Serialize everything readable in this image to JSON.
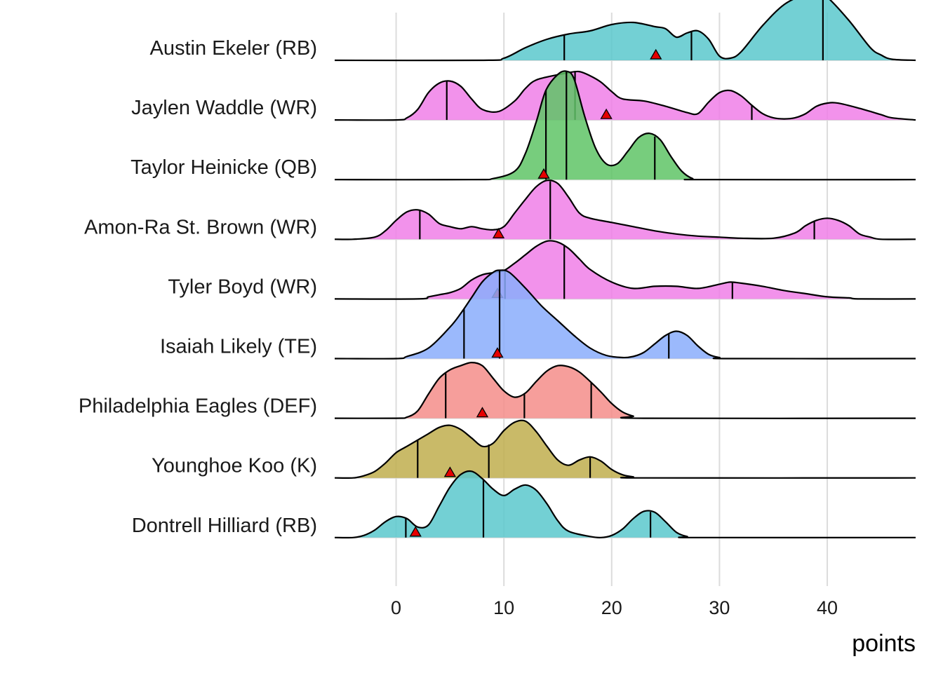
{
  "chart_data": {
    "type": "ridgeline",
    "xlabel": "points",
    "xlim": [
      -5.7,
      48.2
    ],
    "xticks": [
      0,
      10,
      20,
      30,
      40
    ],
    "grid": true,
    "legend": "none",
    "colors": {
      "RB": "#5bc8cc",
      "WR": "#f07fe8",
      "QB": "#5fc466",
      "TE": "#8aadfb",
      "DEF": "#f58d8a",
      "K": "#c0ae4e",
      "marker": "#e60000",
      "outline": "#000000",
      "grid": "#dcdcdc"
    },
    "players": [
      {
        "label": "Austin Ekeler (RB)",
        "position": "RB",
        "marker": 24.1,
        "quantile_lines": [
          15.6,
          27.4,
          39.6
        ],
        "density": [
          [
            -5.7,
            0
          ],
          [
            8,
            0
          ],
          [
            10,
            0.02
          ],
          [
            12,
            0.12
          ],
          [
            14,
            0.2
          ],
          [
            16,
            0.25
          ],
          [
            18,
            0.28
          ],
          [
            20,
            0.34
          ],
          [
            22,
            0.36
          ],
          [
            24,
            0.32
          ],
          [
            25,
            0.3
          ],
          [
            26,
            0.22
          ],
          [
            27,
            0.26
          ],
          [
            28,
            0.28
          ],
          [
            29,
            0.2
          ],
          [
            30,
            0.04
          ],
          [
            31,
            0.02
          ],
          [
            32,
            0.08
          ],
          [
            34,
            0.33
          ],
          [
            36,
            0.53
          ],
          [
            38,
            0.63
          ],
          [
            39,
            0.64
          ],
          [
            40,
            0.6
          ],
          [
            42,
            0.38
          ],
          [
            44,
            0.12
          ],
          [
            45,
            0.05
          ],
          [
            46,
            0.01
          ],
          [
            48.2,
            0
          ]
        ]
      },
      {
        "label": "Jaylen Waddle (WR)",
        "position": "WR",
        "marker": 19.5,
        "quantile_lines": [
          4.7,
          16.6,
          33.0
        ],
        "density": [
          [
            -5.7,
            0
          ],
          [
            0,
            0
          ],
          [
            1,
            0.02
          ],
          [
            2,
            0.1
          ],
          [
            3,
            0.26
          ],
          [
            4,
            0.35
          ],
          [
            5,
            0.37
          ],
          [
            6,
            0.32
          ],
          [
            7,
            0.2
          ],
          [
            8,
            0.1
          ],
          [
            9.5,
            0.08
          ],
          [
            11,
            0.18
          ],
          [
            12,
            0.3
          ],
          [
            13,
            0.38
          ],
          [
            15,
            0.43
          ],
          [
            16,
            0.45
          ],
          [
            17,
            0.46
          ],
          [
            18,
            0.42
          ],
          [
            19,
            0.36
          ],
          [
            20,
            0.27
          ],
          [
            21,
            0.2
          ],
          [
            23,
            0.18
          ],
          [
            25,
            0.13
          ],
          [
            27,
            0.07
          ],
          [
            28,
            0.06
          ],
          [
            29,
            0.17
          ],
          [
            30,
            0.26
          ],
          [
            31,
            0.28
          ],
          [
            32,
            0.23
          ],
          [
            33,
            0.14
          ],
          [
            34,
            0.06
          ],
          [
            35,
            0.02
          ],
          [
            36,
            0.01
          ],
          [
            37,
            0.02
          ],
          [
            38,
            0.06
          ],
          [
            39,
            0.13
          ],
          [
            40,
            0.16
          ],
          [
            41,
            0.16
          ],
          [
            43,
            0.11
          ],
          [
            45,
            0.05
          ],
          [
            46,
            0.02
          ],
          [
            48.2,
            0
          ]
        ]
      },
      {
        "label": "Taylor Heinicke (QB)",
        "position": "QB",
        "marker": 13.7,
        "quantile_lines": [
          13.9,
          15.8,
          24.0
        ],
        "density": [
          [
            -5.7,
            0
          ],
          [
            7,
            0
          ],
          [
            9,
            0.01
          ],
          [
            11,
            0.08
          ],
          [
            12,
            0.25
          ],
          [
            13,
            0.55
          ],
          [
            13.9,
            0.85
          ],
          [
            15,
            1.0
          ],
          [
            15.8,
            1.03
          ],
          [
            16.5,
            0.96
          ],
          [
            17.5,
            0.6
          ],
          [
            18.5,
            0.3
          ],
          [
            19.5,
            0.15
          ],
          [
            20.5,
            0.15
          ],
          [
            21.5,
            0.27
          ],
          [
            22.5,
            0.4
          ],
          [
            23.5,
            0.44
          ],
          [
            24.5,
            0.38
          ],
          [
            25.5,
            0.22
          ],
          [
            26.5,
            0.08
          ],
          [
            27.5,
            0.01
          ],
          [
            28.5,
            0
          ],
          [
            48.2,
            0
          ]
        ]
      },
      {
        "label": "Amon-Ra St. Brown (WR)",
        "position": "WR",
        "marker": 9.5,
        "quantile_lines": [
          2.2,
          14.3,
          38.8
        ],
        "density": [
          [
            -5.7,
            0
          ],
          [
            -4,
            0
          ],
          [
            -2,
            0.02
          ],
          [
            -1,
            0.08
          ],
          [
            0,
            0.18
          ],
          [
            1,
            0.26
          ],
          [
            2,
            0.28
          ],
          [
            3,
            0.24
          ],
          [
            4,
            0.15
          ],
          [
            5,
            0.12
          ],
          [
            6,
            0.1
          ],
          [
            7,
            0.12
          ],
          [
            8,
            0.1
          ],
          [
            9,
            0.09
          ],
          [
            10,
            0.12
          ],
          [
            11,
            0.25
          ],
          [
            12,
            0.38
          ],
          [
            13,
            0.5
          ],
          [
            14,
            0.56
          ],
          [
            15,
            0.53
          ],
          [
            16,
            0.4
          ],
          [
            17,
            0.25
          ],
          [
            18,
            0.2
          ],
          [
            20,
            0.16
          ],
          [
            22,
            0.12
          ],
          [
            24,
            0.08
          ],
          [
            26,
            0.05
          ],
          [
            28,
            0.03
          ],
          [
            30,
            0.02
          ],
          [
            32,
            0.01
          ],
          [
            35,
            0.01
          ],
          [
            37,
            0.06
          ],
          [
            38,
            0.13
          ],
          [
            39,
            0.18
          ],
          [
            40,
            0.2
          ],
          [
            41,
            0.18
          ],
          [
            42,
            0.13
          ],
          [
            43,
            0.05
          ],
          [
            44,
            0.02
          ],
          [
            45,
            0
          ],
          [
            48.2,
            0
          ]
        ]
      },
      {
        "label": "Tyler Boyd (WR)",
        "position": "WR",
        "marker": 9.4,
        "quantile_lines": [
          10.1,
          15.6,
          31.2
        ],
        "density": [
          [
            -5.7,
            0
          ],
          [
            2,
            0
          ],
          [
            3,
            0.02
          ],
          [
            4,
            0.04
          ],
          [
            5,
            0.06
          ],
          [
            6,
            0.1
          ],
          [
            7,
            0.18
          ],
          [
            8,
            0.23
          ],
          [
            9,
            0.25
          ],
          [
            10,
            0.27
          ],
          [
            11,
            0.34
          ],
          [
            12,
            0.42
          ],
          [
            13,
            0.5
          ],
          [
            14,
            0.55
          ],
          [
            15,
            0.54
          ],
          [
            16,
            0.48
          ],
          [
            17,
            0.38
          ],
          [
            18,
            0.28
          ],
          [
            20,
            0.16
          ],
          [
            22,
            0.1
          ],
          [
            24,
            0.12
          ],
          [
            26,
            0.12
          ],
          [
            28,
            0.1
          ],
          [
            30,
            0.14
          ],
          [
            31,
            0.16
          ],
          [
            32,
            0.15
          ],
          [
            34,
            0.12
          ],
          [
            36,
            0.08
          ],
          [
            38,
            0.05
          ],
          [
            40,
            0.02
          ],
          [
            42,
            0.01
          ],
          [
            43,
            0
          ],
          [
            48.2,
            0
          ]
        ]
      },
      {
        "label": "Isaiah Likely (TE)",
        "position": "TE",
        "marker": 9.4,
        "quantile_lines": [
          6.3,
          9.6,
          25.3
        ],
        "density": [
          [
            -5.7,
            0
          ],
          [
            0,
            0
          ],
          [
            1,
            0.02
          ],
          [
            3,
            0.1
          ],
          [
            5,
            0.3
          ],
          [
            6,
            0.43
          ],
          [
            7,
            0.58
          ],
          [
            8,
            0.73
          ],
          [
            9,
            0.82
          ],
          [
            9.6,
            0.84
          ],
          [
            10.5,
            0.82
          ],
          [
            12,
            0.67
          ],
          [
            13.5,
            0.5
          ],
          [
            15,
            0.36
          ],
          [
            16.5,
            0.22
          ],
          [
            18,
            0.1
          ],
          [
            19.5,
            0.03
          ],
          [
            21,
            0.01
          ],
          [
            22,
            0.02
          ],
          [
            23,
            0.06
          ],
          [
            24,
            0.14
          ],
          [
            25,
            0.22
          ],
          [
            26,
            0.26
          ],
          [
            27,
            0.22
          ],
          [
            28,
            0.12
          ],
          [
            29,
            0.04
          ],
          [
            30,
            0.01
          ],
          [
            31,
            0
          ],
          [
            48.2,
            0
          ]
        ]
      },
      {
        "label": "Philadelphia Eagles (DEF)",
        "position": "DEF",
        "marker": 8.0,
        "quantile_lines": [
          4.6,
          11.9,
          18.1
        ],
        "density": [
          [
            -5.7,
            0
          ],
          [
            0,
            0
          ],
          [
            1,
            0.01
          ],
          [
            2,
            0.07
          ],
          [
            3,
            0.23
          ],
          [
            4,
            0.38
          ],
          [
            5,
            0.46
          ],
          [
            6,
            0.5
          ],
          [
            7,
            0.53
          ],
          [
            8,
            0.5
          ],
          [
            9,
            0.38
          ],
          [
            10,
            0.26
          ],
          [
            11,
            0.2
          ],
          [
            12,
            0.24
          ],
          [
            13,
            0.35
          ],
          [
            14,
            0.45
          ],
          [
            15,
            0.5
          ],
          [
            16,
            0.49
          ],
          [
            17,
            0.44
          ],
          [
            18,
            0.35
          ],
          [
            19,
            0.25
          ],
          [
            20,
            0.14
          ],
          [
            21,
            0.06
          ],
          [
            22,
            0.02
          ],
          [
            23,
            0
          ],
          [
            48.2,
            0
          ]
        ]
      },
      {
        "label": "Younghoe Koo (K)",
        "position": "K",
        "marker": 5.0,
        "quantile_lines": [
          2.0,
          8.6,
          18.0
        ],
        "density": [
          [
            -5.7,
            0
          ],
          [
            -4,
            0
          ],
          [
            -3,
            0.02
          ],
          [
            -2,
            0.06
          ],
          [
            -1,
            0.14
          ],
          [
            0,
            0.24
          ],
          [
            1,
            0.3
          ],
          [
            2,
            0.36
          ],
          [
            3,
            0.42
          ],
          [
            4,
            0.48
          ],
          [
            5,
            0.5
          ],
          [
            6,
            0.46
          ],
          [
            7,
            0.38
          ],
          [
            8,
            0.3
          ],
          [
            9,
            0.33
          ],
          [
            10,
            0.45
          ],
          [
            11,
            0.53
          ],
          [
            12,
            0.54
          ],
          [
            13,
            0.44
          ],
          [
            14,
            0.3
          ],
          [
            15,
            0.17
          ],
          [
            16,
            0.12
          ],
          [
            17,
            0.17
          ],
          [
            18,
            0.2
          ],
          [
            19,
            0.16
          ],
          [
            20,
            0.08
          ],
          [
            21,
            0.03
          ],
          [
            22,
            0.01
          ],
          [
            23,
            0
          ],
          [
            48.2,
            0
          ]
        ]
      },
      {
        "label": "Dontrell Hilliard (RB)",
        "position": "RB",
        "marker": 1.8,
        "quantile_lines": [
          0.9,
          8.1,
          23.6
        ],
        "density": [
          [
            -5.7,
            0
          ],
          [
            -4,
            0
          ],
          [
            -3,
            0.02
          ],
          [
            -2,
            0.07
          ],
          [
            -1,
            0.15
          ],
          [
            0,
            0.2
          ],
          [
            1,
            0.18
          ],
          [
            2,
            0.1
          ],
          [
            3,
            0.12
          ],
          [
            4,
            0.3
          ],
          [
            5,
            0.48
          ],
          [
            6,
            0.6
          ],
          [
            7,
            0.63
          ],
          [
            8,
            0.56
          ],
          [
            9,
            0.46
          ],
          [
            10,
            0.4
          ],
          [
            11,
            0.46
          ],
          [
            12,
            0.5
          ],
          [
            13,
            0.45
          ],
          [
            14,
            0.32
          ],
          [
            15,
            0.16
          ],
          [
            16,
            0.06
          ],
          [
            18,
            0.01
          ],
          [
            19,
            0
          ],
          [
            20,
            0.02
          ],
          [
            21,
            0.08
          ],
          [
            22,
            0.18
          ],
          [
            23,
            0.25
          ],
          [
            24,
            0.24
          ],
          [
            25,
            0.15
          ],
          [
            26,
            0.05
          ],
          [
            27,
            0.01
          ],
          [
            28,
            0
          ],
          [
            48.2,
            0
          ]
        ]
      }
    ]
  }
}
